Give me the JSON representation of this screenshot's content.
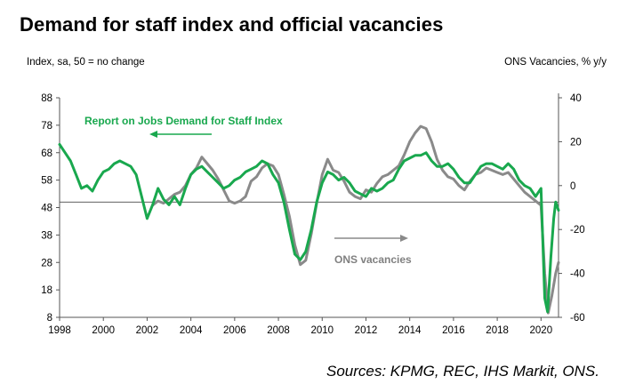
{
  "title": "Demand for staff index and official vacancies",
  "left_axis_unit": "Index, sa, 50 = no change",
  "right_axis_unit": "ONS Vacancies, % y/y",
  "source": "Sources: KPMG, REC, IHS Markit, ONS.",
  "colors": {
    "green": "#19a84e",
    "grey": "#8a8a8a",
    "axis": "#555555"
  },
  "chart_data": {
    "type": "line",
    "title": "Demand for staff index and official vacancies",
    "xlim": [
      1998,
      2020.8
    ],
    "x_ticks": [
      1998,
      2000,
      2002,
      2004,
      2006,
      2008,
      2010,
      2012,
      2014,
      2016,
      2018,
      2020
    ],
    "y_left": {
      "label": "Index, sa, 50 = no change",
      "lim": [
        8,
        88
      ],
      "ticks": [
        88,
        78,
        68,
        58,
        48,
        38,
        28,
        18,
        8
      ]
    },
    "y_right": {
      "label": "ONS Vacancies, % y/y",
      "lim": [
        -60,
        40
      ],
      "ticks": [
        40,
        20,
        0,
        -20,
        -40,
        -60
      ]
    },
    "reference_line": {
      "axis": "left",
      "value": 50
    },
    "annotations": [
      {
        "text": "Report on Jobs Demand for Staff Index",
        "color": "green",
        "arrow": "left"
      },
      {
        "text": "ONS vacancies",
        "color": "grey",
        "arrow": "right"
      }
    ],
    "series": [
      {
        "name": "Report on Jobs Demand for Staff Index",
        "axis": "left",
        "color": "#19a84e",
        "points": [
          [
            1998.0,
            71
          ],
          [
            1998.25,
            68
          ],
          [
            1998.5,
            65
          ],
          [
            1998.75,
            60
          ],
          [
            1999.0,
            55
          ],
          [
            1999.25,
            56
          ],
          [
            1999.5,
            54
          ],
          [
            1999.75,
            58
          ],
          [
            2000.0,
            61
          ],
          [
            2000.25,
            62
          ],
          [
            2000.5,
            64
          ],
          [
            2000.75,
            65
          ],
          [
            2001.0,
            64
          ],
          [
            2001.25,
            63
          ],
          [
            2001.5,
            60
          ],
          [
            2001.75,
            52
          ],
          [
            2002.0,
            44
          ],
          [
            2002.25,
            49
          ],
          [
            2002.5,
            55
          ],
          [
            2002.75,
            51
          ],
          [
            2003.0,
            49
          ],
          [
            2003.25,
            52
          ],
          [
            2003.5,
            49
          ],
          [
            2003.75,
            55
          ],
          [
            2004.0,
            60
          ],
          [
            2004.25,
            62
          ],
          [
            2004.5,
            63
          ],
          [
            2004.75,
            61
          ],
          [
            2005.0,
            59
          ],
          [
            2005.25,
            57
          ],
          [
            2005.5,
            55
          ],
          [
            2005.75,
            56
          ],
          [
            2006.0,
            58
          ],
          [
            2006.25,
            59
          ],
          [
            2006.5,
            61
          ],
          [
            2006.75,
            62
          ],
          [
            2007.0,
            63
          ],
          [
            2007.25,
            65
          ],
          [
            2007.5,
            64
          ],
          [
            2007.75,
            60
          ],
          [
            2008.0,
            57
          ],
          [
            2008.25,
            50
          ],
          [
            2008.5,
            40
          ],
          [
            2008.75,
            31
          ],
          [
            2009.0,
            29
          ],
          [
            2009.25,
            32
          ],
          [
            2009.5,
            40
          ],
          [
            2009.75,
            50
          ],
          [
            2010.0,
            57
          ],
          [
            2010.25,
            61
          ],
          [
            2010.5,
            60
          ],
          [
            2010.75,
            58
          ],
          [
            2011.0,
            59
          ],
          [
            2011.25,
            57
          ],
          [
            2011.5,
            54
          ],
          [
            2011.75,
            53
          ],
          [
            2012.0,
            52
          ],
          [
            2012.25,
            55
          ],
          [
            2012.5,
            54
          ],
          [
            2012.75,
            55
          ],
          [
            2013.0,
            57
          ],
          [
            2013.25,
            58
          ],
          [
            2013.5,
            62
          ],
          [
            2013.75,
            65
          ],
          [
            2014.0,
            66
          ],
          [
            2014.25,
            67
          ],
          [
            2014.5,
            67
          ],
          [
            2014.75,
            68
          ],
          [
            2015.0,
            65
          ],
          [
            2015.25,
            63
          ],
          [
            2015.5,
            63
          ],
          [
            2015.75,
            64
          ],
          [
            2016.0,
            62
          ],
          [
            2016.25,
            59
          ],
          [
            2016.5,
            57
          ],
          [
            2016.75,
            57
          ],
          [
            2017.0,
            60
          ],
          [
            2017.25,
            63
          ],
          [
            2017.5,
            64
          ],
          [
            2017.75,
            64
          ],
          [
            2018.0,
            63
          ],
          [
            2018.25,
            62
          ],
          [
            2018.5,
            64
          ],
          [
            2018.75,
            62
          ],
          [
            2019.0,
            58
          ],
          [
            2019.25,
            56
          ],
          [
            2019.5,
            55
          ],
          [
            2019.75,
            52
          ],
          [
            2020.0,
            55
          ],
          [
            2020.17,
            15
          ],
          [
            2020.3,
            10
          ],
          [
            2020.45,
            30
          ],
          [
            2020.58,
            44
          ],
          [
            2020.67,
            50
          ],
          [
            2020.8,
            47
          ]
        ]
      },
      {
        "name": "ONS vacancies",
        "axis": "right",
        "color": "#8a8a8a",
        "points": [
          [
            2002.25,
            -9
          ],
          [
            2002.5,
            -7
          ],
          [
            2002.75,
            -8
          ],
          [
            2003.0,
            -6
          ],
          [
            2003.25,
            -4
          ],
          [
            2003.5,
            -3
          ],
          [
            2003.75,
            0
          ],
          [
            2004.0,
            5
          ],
          [
            2004.25,
            8
          ],
          [
            2004.5,
            13
          ],
          [
            2004.75,
            10
          ],
          [
            2005.0,
            7
          ],
          [
            2005.25,
            3
          ],
          [
            2005.5,
            -2
          ],
          [
            2005.75,
            -7
          ],
          [
            2006.0,
            -8
          ],
          [
            2006.25,
            -7
          ],
          [
            2006.5,
            -5
          ],
          [
            2006.75,
            2
          ],
          [
            2007.0,
            4
          ],
          [
            2007.25,
            8
          ],
          [
            2007.5,
            10
          ],
          [
            2007.75,
            9
          ],
          [
            2008.0,
            5
          ],
          [
            2008.25,
            -4
          ],
          [
            2008.5,
            -14
          ],
          [
            2008.75,
            -27
          ],
          [
            2009.0,
            -36
          ],
          [
            2009.25,
            -34
          ],
          [
            2009.5,
            -22
          ],
          [
            2009.75,
            -8
          ],
          [
            2010.0,
            5
          ],
          [
            2010.25,
            12
          ],
          [
            2010.5,
            7
          ],
          [
            2010.75,
            6
          ],
          [
            2011.0,
            2
          ],
          [
            2011.25,
            -3
          ],
          [
            2011.5,
            -5
          ],
          [
            2011.75,
            -6
          ],
          [
            2012.0,
            -2
          ],
          [
            2012.25,
            -3
          ],
          [
            2012.5,
            1
          ],
          [
            2012.75,
            4
          ],
          [
            2013.0,
            5
          ],
          [
            2013.25,
            7
          ],
          [
            2013.5,
            9
          ],
          [
            2013.75,
            14
          ],
          [
            2014.0,
            20
          ],
          [
            2014.25,
            24
          ],
          [
            2014.5,
            27
          ],
          [
            2014.75,
            26
          ],
          [
            2015.0,
            20
          ],
          [
            2015.25,
            12
          ],
          [
            2015.5,
            7
          ],
          [
            2015.75,
            4
          ],
          [
            2016.0,
            3
          ],
          [
            2016.25,
            0
          ],
          [
            2016.5,
            -2
          ],
          [
            2016.75,
            2
          ],
          [
            2017.0,
            5
          ],
          [
            2017.25,
            6
          ],
          [
            2017.5,
            8
          ],
          [
            2017.75,
            7
          ],
          [
            2018.0,
            6
          ],
          [
            2018.25,
            5
          ],
          [
            2018.5,
            6
          ],
          [
            2018.75,
            3
          ],
          [
            2019.0,
            0
          ],
          [
            2019.25,
            -3
          ],
          [
            2019.5,
            -5
          ],
          [
            2019.75,
            -7
          ],
          [
            2020.0,
            -9
          ],
          [
            2020.17,
            -40
          ],
          [
            2020.33,
            -58
          ],
          [
            2020.5,
            -50
          ],
          [
            2020.67,
            -40
          ],
          [
            2020.8,
            -35
          ]
        ]
      }
    ]
  }
}
